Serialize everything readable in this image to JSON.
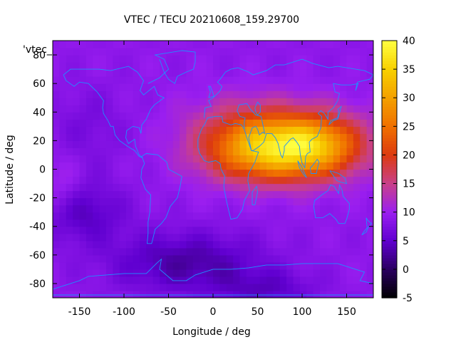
{
  "chart_data": {
    "type": "heatmap",
    "title": "VTEC / TECU 20210608_159.29700",
    "xlabel": "Longitude / deg",
    "ylabel": "Latitude / deg",
    "legend_entry": "'vtec_",
    "xlim": [
      -180,
      180
    ],
    "ylim": [
      -90,
      90
    ],
    "xticks": [
      -150,
      -100,
      -50,
      0,
      50,
      100,
      150
    ],
    "yticks": [
      -80,
      -60,
      -40,
      -20,
      0,
      20,
      40,
      60,
      80
    ],
    "colorbar": {
      "range": [
        -5,
        40
      ],
      "ticks": [
        -5,
        0,
        5,
        10,
        15,
        20,
        25,
        30,
        35,
        40
      ],
      "palette": [
        {
          "v": -5,
          "color": "#000000"
        },
        {
          "v": 0,
          "color": "#2a0060"
        },
        {
          "v": 5,
          "color": "#6000d0"
        },
        {
          "v": 10,
          "color": "#9a1ef0"
        },
        {
          "v": 15,
          "color": "#c8408a"
        },
        {
          "v": 20,
          "color": "#dc3a10"
        },
        {
          "v": 25,
          "color": "#f07000"
        },
        {
          "v": 30,
          "color": "#f4a000"
        },
        {
          "v": 35,
          "color": "#f8d000"
        },
        {
          "v": 40,
          "color": "#ffff40"
        }
      ]
    },
    "field": {
      "description_units": "TECU",
      "background": 9,
      "features": [
        {
          "lon": 85,
          "lat": 18,
          "amp": 21,
          "slon": 55,
          "slat": 16
        },
        {
          "lon": 50,
          "lat": 10,
          "amp": 9,
          "slon": 45,
          "slat": 14
        },
        {
          "lon": 120,
          "lat": 15,
          "amp": 7,
          "slon": 30,
          "slat": 14
        },
        {
          "lon": 25,
          "lat": 35,
          "amp": 3,
          "slon": 45,
          "slat": 15
        },
        {
          "lon": -150,
          "lat": -30,
          "amp": -5,
          "slon": 35,
          "slat": 15
        },
        {
          "lon": -30,
          "lat": -65,
          "amp": -6,
          "slon": 60,
          "slat": 15
        },
        {
          "lon": 60,
          "lat": -85,
          "amp": -4,
          "slon": 40,
          "slat": 10
        },
        {
          "lon": -170,
          "lat": -15,
          "amp": 3,
          "slon": 15,
          "slat": 15
        },
        {
          "lon": -140,
          "lat": 30,
          "amp": -2,
          "slon": 30,
          "slat": 20
        }
      ]
    },
    "coastline_color": "#1e90ff"
  }
}
